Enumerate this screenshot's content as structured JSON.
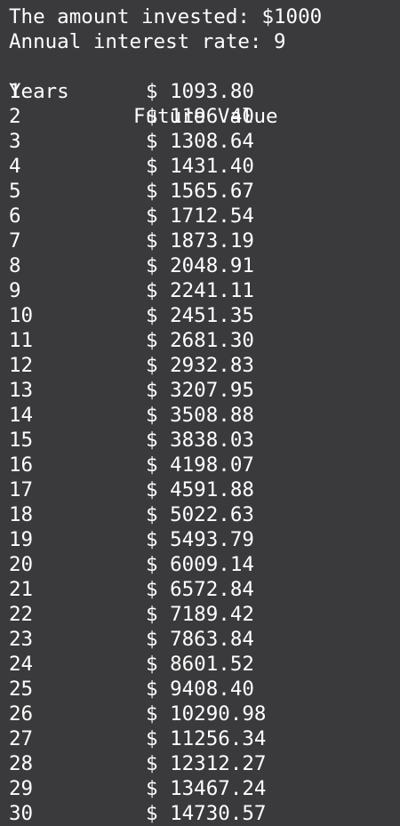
{
  "summary": {
    "amount_invested": "The amount invested: $1000",
    "interest_rate": "Annual interest rate: 9"
  },
  "table": {
    "headers": {
      "years": "Years",
      "future_value": "Future Value"
    },
    "rows": [
      {
        "year": "1",
        "value": "$ 1093.80"
      },
      {
        "year": "2",
        "value": "$ 1196.40"
      },
      {
        "year": "3",
        "value": "$ 1308.64"
      },
      {
        "year": "4",
        "value": "$ 1431.40"
      },
      {
        "year": "5",
        "value": "$ 1565.67"
      },
      {
        "year": "6",
        "value": "$ 1712.54"
      },
      {
        "year": "7",
        "value": "$ 1873.19"
      },
      {
        "year": "8",
        "value": "$ 2048.91"
      },
      {
        "year": "9",
        "value": "$ 2241.11"
      },
      {
        "year": "10",
        "value": "$ 2451.35"
      },
      {
        "year": "11",
        "value": "$ 2681.30"
      },
      {
        "year": "12",
        "value": "$ 2932.83"
      },
      {
        "year": "13",
        "value": "$ 3207.95"
      },
      {
        "year": "14",
        "value": "$ 3508.88"
      },
      {
        "year": "15",
        "value": "$ 3838.03"
      },
      {
        "year": "16",
        "value": "$ 4198.07"
      },
      {
        "year": "17",
        "value": "$ 4591.88"
      },
      {
        "year": "18",
        "value": "$ 5022.63"
      },
      {
        "year": "19",
        "value": "$ 5493.79"
      },
      {
        "year": "20",
        "value": "$ 6009.14"
      },
      {
        "year": "21",
        "value": "$ 6572.84"
      },
      {
        "year": "22",
        "value": "$ 7189.42"
      },
      {
        "year": "23",
        "value": "$ 7863.84"
      },
      {
        "year": "24",
        "value": "$ 8601.52"
      },
      {
        "year": "25",
        "value": "$ 9408.40"
      },
      {
        "year": "26",
        "value": "$ 10290.98"
      },
      {
        "year": "27",
        "value": "$ 11256.34"
      },
      {
        "year": "28",
        "value": "$ 12312.27"
      },
      {
        "year": "29",
        "value": "$ 13467.24"
      },
      {
        "year": "30",
        "value": "$ 14730.57"
      }
    ]
  },
  "colors": {
    "background": "#3a393b",
    "text": "#ffffff"
  }
}
